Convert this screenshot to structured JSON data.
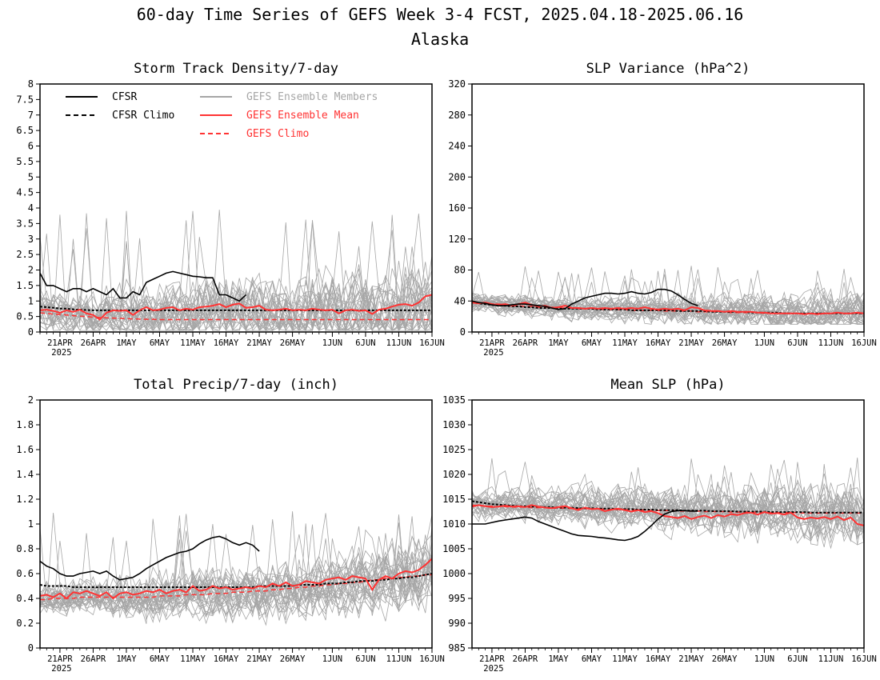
{
  "figure": {
    "title": "60-day Time Series of GEFS Week 3-4 FCST, 2025.04.18-2025.06.16",
    "subtitle": "Alaska"
  },
  "legend": {
    "items": [
      {
        "label": "CFSR",
        "color": "#000000",
        "style": "solid"
      },
      {
        "label": "CFSR Climo",
        "color": "#000000",
        "style": "dashed"
      },
      {
        "label": "GEFS Ensemble Members",
        "color": "#a6a6a6",
        "style": "solid"
      },
      {
        "label": "GEFS Ensemble Mean",
        "color": "#ff3333",
        "style": "solid"
      },
      {
        "label": "GEFS Climo",
        "color": "#ff3333",
        "style": "dashed"
      }
    ]
  },
  "colors": {
    "cfsr": "#000000",
    "members": "#a6a6a6",
    "ens_mean": "#ff3333",
    "gefs_climo": "#ff3333",
    "legend_members_text": "#a6a6a6",
    "legend_gefs_text": "#ff3333"
  },
  "x_axis": {
    "tick_labels": [
      "21APR",
      "26APR",
      "1MAY",
      "6MAY",
      "11MAY",
      "16MAY",
      "21MAY",
      "26MAY",
      "1JUN",
      "6JUN",
      "11JUN",
      "16JUN"
    ],
    "tick_days": [
      3,
      8,
      13,
      18,
      23,
      28,
      33,
      38,
      44,
      49,
      54,
      59
    ],
    "year_label": "2025",
    "start_date": "2025-04-18",
    "n_days": 60
  },
  "chart_data": [
    {
      "type": "line",
      "title": "Storm Track Density/7-day",
      "ylim": [
        0,
        8
      ],
      "yticks": [
        "0",
        "0.5",
        "1",
        "1.5",
        "2",
        "2.5",
        "3",
        "3.5",
        "4",
        "4.5",
        "5",
        "5.5",
        "6",
        "6.5",
        "7",
        "7.5",
        "8"
      ],
      "legend_location": "top-left",
      "series": [
        {
          "name": "CFSR",
          "values": [
            1.9,
            1.5,
            1.5,
            1.4,
            1.3,
            1.4,
            1.4,
            1.3,
            1.4,
            1.3,
            1.2,
            1.4,
            1.1,
            1.1,
            1.3,
            1.2,
            1.6,
            1.7,
            1.8,
            1.9,
            1.95,
            1.9,
            1.85,
            1.8,
            1.78,
            1.75,
            1.75,
            1.2,
            1.2,
            1.1,
            1.0,
            1.2
          ]
        },
        {
          "name": "CFSR Climo",
          "values": [
            0.82,
            0.8,
            0.78,
            0.76,
            0.75,
            0.73,
            0.72,
            0.71,
            0.7,
            0.7,
            0.7,
            0.7,
            0.7,
            0.7,
            0.7,
            0.7,
            0.7,
            0.7,
            0.7,
            0.7,
            0.7,
            0.7,
            0.7,
            0.7,
            0.7,
            0.7,
            0.7,
            0.7,
            0.7,
            0.7,
            0.7,
            0.7,
            0.7,
            0.7,
            0.7,
            0.7,
            0.7,
            0.7,
            0.7,
            0.7,
            0.7,
            0.7,
            0.7,
            0.7,
            0.7,
            0.7,
            0.7,
            0.7,
            0.7,
            0.7,
            0.7,
            0.7,
            0.7,
            0.7,
            0.7,
            0.7,
            0.7,
            0.7,
            0.7,
            0.7
          ]
        },
        {
          "name": "GEFS Ensemble Mean",
          "values": [
            0.7,
            0.72,
            0.68,
            0.62,
            0.7,
            0.65,
            0.72,
            0.6,
            0.55,
            0.4,
            0.62,
            0.7,
            0.68,
            0.7,
            0.55,
            0.7,
            0.8,
            0.7,
            0.72,
            0.78,
            0.8,
            0.7,
            0.75,
            0.72,
            0.8,
            0.82,
            0.85,
            0.9,
            0.8,
            0.88,
            0.92,
            0.78,
            0.8,
            0.85,
            0.72,
            0.7,
            0.72,
            0.75,
            0.7,
            0.72,
            0.7,
            0.75,
            0.72,
            0.7,
            0.72,
            0.6,
            0.7,
            0.72,
            0.68,
            0.7,
            0.58,
            0.72,
            0.75,
            0.82,
            0.88,
            0.9,
            0.85,
            0.95,
            1.15,
            1.2
          ]
        },
        {
          "name": "GEFS Climo",
          "values": [
            0.62,
            0.6,
            0.58,
            0.56,
            0.55,
            0.53,
            0.51,
            0.5,
            0.48,
            0.47,
            0.46,
            0.45,
            0.44,
            0.43,
            0.42,
            0.42,
            0.41,
            0.41,
            0.4,
            0.4,
            0.4,
            0.4,
            0.4,
            0.4,
            0.4,
            0.4,
            0.4,
            0.4,
            0.4,
            0.4,
            0.4,
            0.4,
            0.4,
            0.4,
            0.4,
            0.4,
            0.4,
            0.4,
            0.4,
            0.4,
            0.4,
            0.4,
            0.4,
            0.4,
            0.4,
            0.4,
            0.4,
            0.4,
            0.4,
            0.4,
            0.4,
            0.4,
            0.4,
            0.4,
            0.4,
            0.4,
            0.4,
            0.4,
            0.4,
            0.4
          ]
        }
      ],
      "members": {
        "count": 30,
        "center_offset": 0.02,
        "spread": 0.5,
        "min": 0.05,
        "max_spike": 4.0
      }
    },
    {
      "type": "line",
      "title": "SLP Variance (hPa^2)",
      "ylim": [
        0,
        320
      ],
      "yticks": [
        "0",
        "40",
        "80",
        "120",
        "160",
        "200",
        "240",
        "280",
        "320"
      ],
      "series": [
        {
          "name": "CFSR",
          "values": [
            40,
            38,
            37,
            35,
            34,
            34,
            35,
            36,
            36,
            35,
            34,
            33,
            31,
            29,
            30,
            36,
            40,
            44,
            46,
            48,
            50,
            50,
            49,
            50,
            52,
            50,
            49,
            51,
            55,
            55,
            53,
            48,
            42,
            37,
            34
          ]
        },
        {
          "name": "CFSR Climo",
          "values": [
            38,
            37,
            36,
            35,
            34,
            34,
            33,
            33,
            32,
            32,
            31,
            31,
            31,
            30,
            30,
            30,
            30,
            30,
            30,
            29,
            29,
            29,
            29,
            29,
            28,
            28,
            28,
            28,
            28,
            28,
            28,
            27,
            27,
            27,
            27,
            27,
            26,
            26,
            26,
            26,
            26,
            26,
            25,
            25,
            25,
            25,
            25,
            24,
            24,
            24,
            24,
            24,
            24,
            24,
            24,
            24,
            24,
            24,
            24,
            24
          ]
        },
        {
          "name": "GEFS Ensemble Mean",
          "values": [
            38,
            37,
            38,
            36,
            35,
            36,
            34,
            36,
            38,
            35,
            33,
            34,
            31,
            32,
            34,
            31,
            31,
            30,
            31,
            30,
            31,
            30,
            31,
            30,
            31,
            30,
            32,
            30,
            29,
            30,
            29,
            30,
            28,
            32,
            31,
            28,
            27,
            27,
            26,
            27,
            26,
            26,
            26,
            25,
            25,
            24,
            24,
            24,
            24,
            24,
            23,
            24,
            23,
            24,
            24,
            25,
            24,
            24,
            25,
            24
          ]
        },
        {
          "name": "GEFS Climo",
          "values": [
            39,
            38,
            37,
            36,
            36,
            35,
            34,
            34,
            33,
            33,
            32,
            32,
            32,
            31,
            31,
            31,
            30,
            30,
            30,
            30,
            29,
            29,
            29,
            29,
            28,
            28,
            28,
            28,
            28,
            27,
            27,
            27,
            27,
            27,
            26,
            26,
            26,
            26,
            26,
            25,
            25,
            25,
            25,
            25,
            24,
            24,
            24,
            24,
            24,
            24,
            24,
            24,
            24,
            24,
            24,
            24,
            24,
            24,
            24,
            24
          ]
        }
      ],
      "members": {
        "count": 30,
        "center_offset": 0,
        "spread": 9,
        "min": 10,
        "max_spike": 86
      }
    },
    {
      "type": "line",
      "title": "Total Precip/7-day (inch)",
      "ylim": [
        0,
        2
      ],
      "yticks": [
        "0",
        "0.2",
        "0.4",
        "0.6",
        "0.8",
        "1",
        "1.2",
        "1.4",
        "1.6",
        "1.8",
        "2"
      ],
      "series": [
        {
          "name": "CFSR",
          "values": [
            0.7,
            0.66,
            0.64,
            0.6,
            0.58,
            0.58,
            0.6,
            0.61,
            0.62,
            0.6,
            0.62,
            0.58,
            0.55,
            0.56,
            0.57,
            0.6,
            0.64,
            0.67,
            0.7,
            0.73,
            0.75,
            0.77,
            0.78,
            0.8,
            0.84,
            0.87,
            0.89,
            0.9,
            0.88,
            0.85,
            0.83,
            0.85,
            0.83,
            0.78
          ]
        },
        {
          "name": "CFSR Climo",
          "values": [
            0.51,
            0.5,
            0.5,
            0.5,
            0.5,
            0.49,
            0.49,
            0.49,
            0.49,
            0.49,
            0.49,
            0.49,
            0.49,
            0.49,
            0.49,
            0.49,
            0.49,
            0.49,
            0.49,
            0.49,
            0.49,
            0.49,
            0.49,
            0.49,
            0.49,
            0.49,
            0.49,
            0.49,
            0.49,
            0.49,
            0.49,
            0.49,
            0.49,
            0.5,
            0.5,
            0.5,
            0.5,
            0.5,
            0.5,
            0.51,
            0.51,
            0.51,
            0.51,
            0.52,
            0.52,
            0.52,
            0.53,
            0.53,
            0.54,
            0.54,
            0.54,
            0.55,
            0.55,
            0.56,
            0.56,
            0.57,
            0.57,
            0.58,
            0.59,
            0.6
          ]
        },
        {
          "name": "GEFS Ensemble Mean",
          "values": [
            0.42,
            0.43,
            0.41,
            0.44,
            0.4,
            0.45,
            0.44,
            0.46,
            0.44,
            0.42,
            0.45,
            0.4,
            0.44,
            0.45,
            0.43,
            0.44,
            0.46,
            0.45,
            0.47,
            0.44,
            0.46,
            0.47,
            0.45,
            0.5,
            0.46,
            0.47,
            0.5,
            0.48,
            0.49,
            0.47,
            0.48,
            0.49,
            0.48,
            0.5,
            0.49,
            0.52,
            0.5,
            0.53,
            0.5,
            0.51,
            0.54,
            0.53,
            0.52,
            0.55,
            0.56,
            0.57,
            0.55,
            0.58,
            0.57,
            0.56,
            0.47,
            0.55,
            0.58,
            0.56,
            0.6,
            0.62,
            0.61,
            0.63,
            0.67,
            0.72
          ]
        },
        {
          "name": "GEFS Climo",
          "values": [
            0.39,
            0.39,
            0.4,
            0.4,
            0.4,
            0.4,
            0.41,
            0.41,
            0.41,
            0.41,
            0.41,
            0.41,
            0.41,
            0.41,
            0.41,
            0.41,
            0.41,
            0.41,
            0.42,
            0.42,
            0.42,
            0.42,
            0.43,
            0.43,
            0.43,
            0.43,
            0.44,
            0.44,
            0.44,
            0.45,
            0.45,
            0.45,
            0.46,
            0.46,
            0.46,
            0.47,
            0.47,
            0.48,
            0.48,
            0.49,
            0.49,
            0.5,
            0.5,
            0.51,
            0.51,
            0.52,
            0.52,
            0.53,
            0.53,
            0.54,
            0.55,
            0.55,
            0.56,
            0.56,
            0.57,
            0.57,
            0.58,
            0.58,
            0.59,
            0.59
          ]
        }
      ],
      "members": {
        "count": 30,
        "center_offset": -0.02,
        "spread": 0.1,
        "min": 0.12,
        "max_spike": 1.12
      }
    },
    {
      "type": "line",
      "title": "Mean SLP (hPa)",
      "ylim": [
        985,
        1035
      ],
      "yticks": [
        "985",
        "990",
        "995",
        "1000",
        "1005",
        "1010",
        "1015",
        "1020",
        "1025",
        "1030",
        "1035"
      ],
      "series": [
        {
          "name": "CFSR",
          "values": [
            1010,
            1010,
            1010,
            1010.3,
            1010.6,
            1010.8,
            1011,
            1011.2,
            1011.4,
            1011.2,
            1010.5,
            1010,
            1009.5,
            1009,
            1008.5,
            1008,
            1007.7,
            1007.6,
            1007.5,
            1007.3,
            1007.2,
            1007,
            1006.8,
            1006.7,
            1007,
            1007.5,
            1008.5,
            1009.7,
            1011,
            1012,
            1012.5,
            1012.7,
            1012.7,
            1012.6,
            1012.6
          ]
        },
        {
          "name": "CFSR Climo",
          "values": [
            1014.6,
            1014.4,
            1014.2,
            1014,
            1013.9,
            1013.8,
            1013.7,
            1013.6,
            1013.6,
            1013.5,
            1013.5,
            1013.4,
            1013.4,
            1013.3,
            1013.3,
            1013.3,
            1013.2,
            1013.2,
            1013.2,
            1013.1,
            1013.1,
            1013.1,
            1013,
            1013,
            1013,
            1012.9,
            1012.9,
            1012.9,
            1012.8,
            1012.8,
            1012.8,
            1012.8,
            1012.7,
            1012.7,
            1012.7,
            1012.7,
            1012.6,
            1012.6,
            1012.6,
            1012.6,
            1012.5,
            1012.5,
            1012.5,
            1012.5,
            1012.5,
            1012.4,
            1012.4,
            1012.4,
            1012.4,
            1012.4,
            1012.4,
            1012.3,
            1012.3,
            1012.3,
            1012.3,
            1012.3,
            1012.3,
            1012.3,
            1012.3,
            1012.3
          ]
        },
        {
          "name": "GEFS Ensemble Mean",
          "values": [
            1013.5,
            1013.8,
            1013.6,
            1013.4,
            1013.5,
            1013.7,
            1013.5,
            1013.6,
            1013.4,
            1013.8,
            1013.5,
            1013.3,
            1013.2,
            1013.4,
            1013.6,
            1013.2,
            1012.8,
            1013.3,
            1013,
            1013.1,
            1012.6,
            1012.9,
            1013.1,
            1012.8,
            1012.5,
            1012.8,
            1012.4,
            1012.6,
            1012.2,
            1011.6,
            1011.4,
            1011.2,
            1011.6,
            1011,
            1011.4,
            1011.7,
            1011.2,
            1011.8,
            1011.5,
            1012,
            1011.8,
            1012.2,
            1012.3,
            1011.9,
            1012.4,
            1012.1,
            1012.2,
            1011.9,
            1012.3,
            1011.3,
            1011,
            1011.3,
            1011.1,
            1011.4,
            1011,
            1011.5,
            1010.8,
            1011.3,
            1010,
            1009.7
          ]
        },
        {
          "name": "GEFS Climo",
          "values": [
            1013.8,
            1013.7,
            1013.6,
            1013.6,
            1013.5,
            1013.5,
            1013.4,
            1013.4,
            1013.4,
            1013.3,
            1013.3,
            1013.3,
            1013.2,
            1013.2,
            1013.2,
            1013.1,
            1013.1,
            1013.1,
            1013,
            1013,
            1013,
            1012.9,
            1012.9,
            1012.9,
            1012.8,
            1012.8,
            1012.8,
            1012.7,
            1012.7,
            1012.7,
            1012.7,
            1012.6,
            1012.6,
            1012.6,
            1012.6,
            1012.5,
            1012.5,
            1012.5,
            1012.5,
            1012.4,
            1012.4,
            1012.4,
            1012.4,
            1012.4,
            1012.3,
            1012.3,
            1012.3,
            1012.3,
            1012.3,
            1012.3,
            1012.2,
            1012.2,
            1012.2,
            1012.2,
            1012.2,
            1012.2,
            1012.2,
            1012.2,
            1012.2,
            1012.2
          ]
        }
      ],
      "members": {
        "count": 30,
        "center_offset": 0.5,
        "spread": 2.2,
        "min": 1001,
        "max_spike": 1023.5
      }
    }
  ]
}
